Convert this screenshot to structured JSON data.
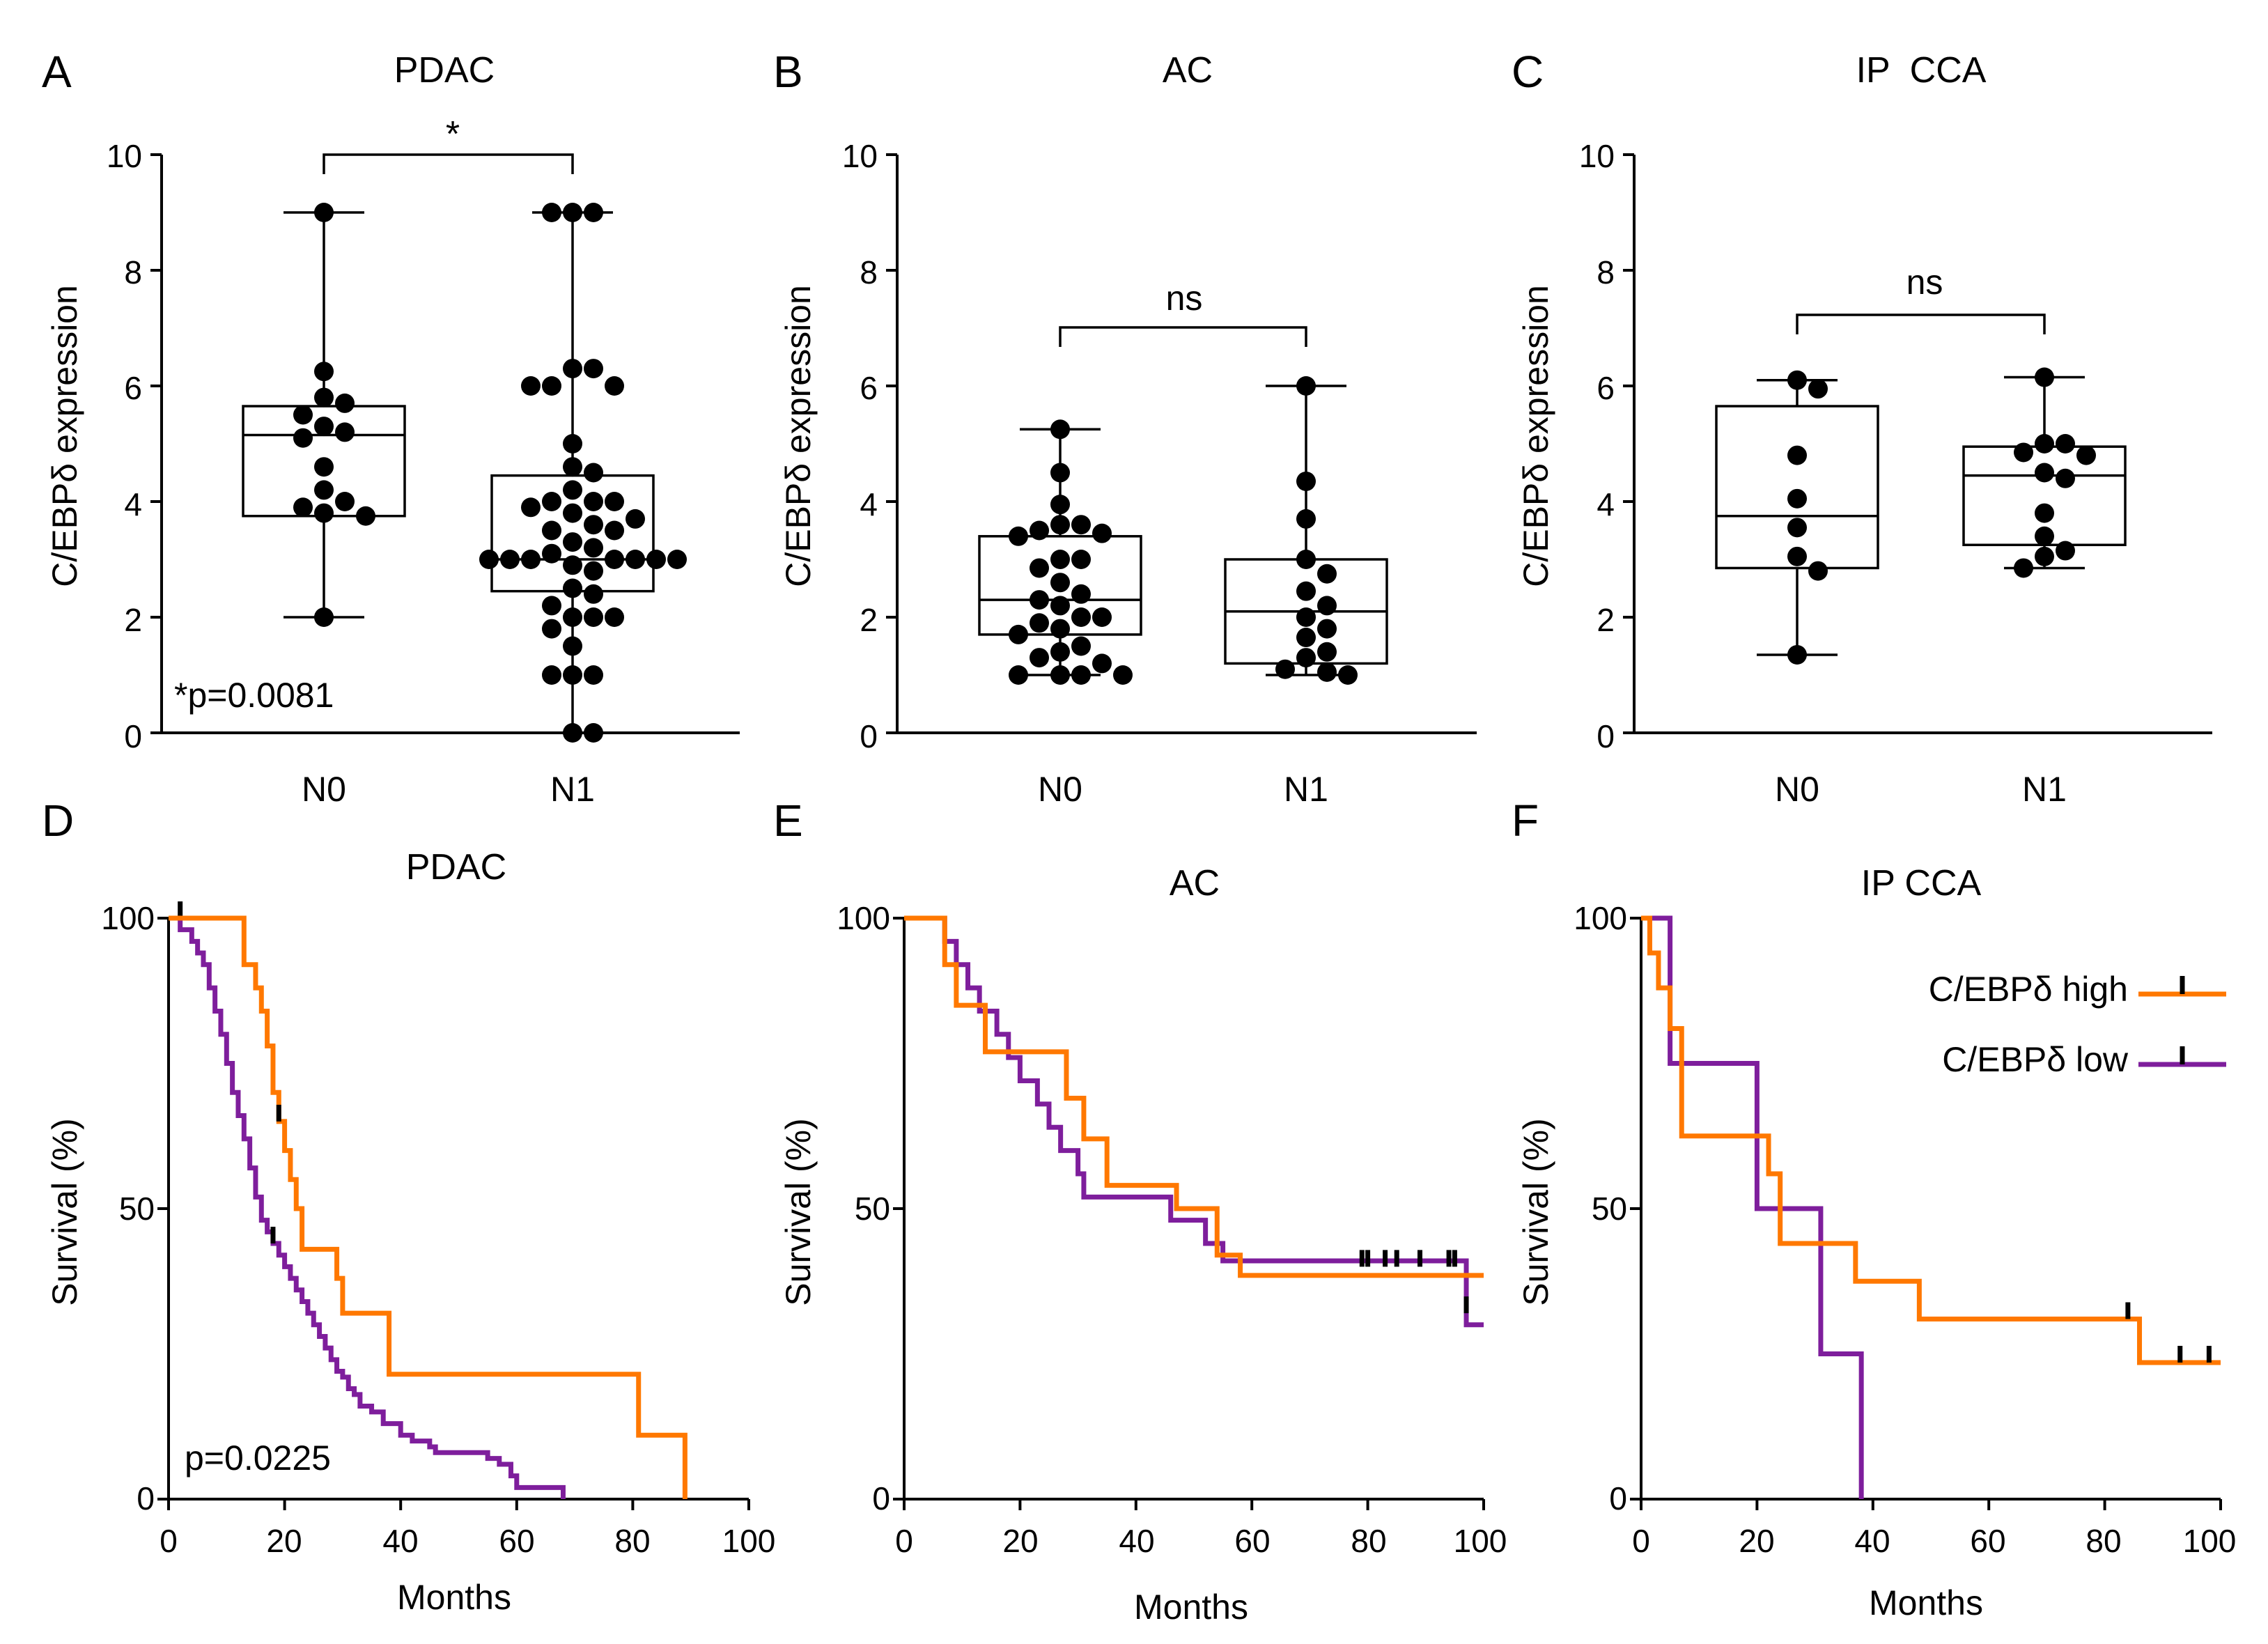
{
  "figure": {
    "legend": {
      "entries": [
        {
          "label": "C/EBPδ high",
          "color": "#ff7800"
        },
        {
          "label": "C/EBPδ low",
          "color": "#7e1e9c"
        }
      ]
    }
  },
  "chart_data": [
    {
      "panel": "A",
      "type": "box",
      "title": "PDAC",
      "ylabel": "C/EBPδ expression",
      "ylim": [
        0,
        10
      ],
      "yticks": [
        "0",
        "2",
        "4",
        "6",
        "8",
        "10"
      ],
      "categories": [
        "N0",
        "N1"
      ],
      "boxes": [
        {
          "name": "N0",
          "min": 2.0,
          "q1": 3.75,
          "median": 5.15,
          "q3": 5.65,
          "max": 9.0,
          "points": [
            9.0,
            6.25,
            5.8,
            5.7,
            5.5,
            5.3,
            5.2,
            5.1,
            4.6,
            4.2,
            4.0,
            3.9,
            3.8,
            3.75,
            2.0
          ]
        },
        {
          "name": "N1",
          "min": 0.0,
          "q1": 2.45,
          "median": 3.0,
          "q3": 4.45,
          "max": 9.0,
          "points": [
            9.0,
            9.0,
            9.0,
            6.3,
            6.3,
            6.0,
            6.0,
            6.0,
            5.0,
            4.6,
            4.5,
            4.2,
            4.0,
            4.0,
            4.0,
            3.9,
            3.8,
            3.7,
            3.6,
            3.5,
            3.5,
            3.3,
            3.2,
            3.1,
            3.0,
            3.0,
            3.0,
            3.0,
            3.0,
            3.0,
            3.0,
            2.9,
            2.8,
            2.5,
            2.4,
            2.2,
            2.0,
            2.0,
            2.0,
            1.8,
            1.5,
            1.0,
            1.0,
            1.0,
            0.0,
            0.0
          ]
        }
      ],
      "comparison": "*",
      "annotation": "*p=0.0081"
    },
    {
      "panel": "B",
      "type": "box",
      "title": "AC",
      "ylabel": "C/EBPδ expression",
      "ylim": [
        0,
        10
      ],
      "yticks": [
        "0",
        "2",
        "4",
        "6",
        "8",
        "10"
      ],
      "categories": [
        "N0",
        "N1"
      ],
      "boxes": [
        {
          "name": "N0",
          "min": 1.0,
          "q1": 1.7,
          "median": 2.3,
          "q3": 3.4,
          "max": 5.25,
          "points": [
            5.25,
            4.5,
            3.95,
            3.6,
            3.6,
            3.5,
            3.45,
            3.4,
            3.0,
            3.0,
            2.85,
            2.6,
            2.4,
            2.3,
            2.2,
            2.0,
            2.0,
            1.9,
            1.8,
            1.7,
            1.5,
            1.4,
            1.3,
            1.2,
            1.0,
            1.0,
            1.0,
            1.0
          ]
        },
        {
          "name": "N1",
          "min": 1.0,
          "q1": 1.2,
          "median": 2.1,
          "q3": 3.0,
          "max": 6.0,
          "points": [
            6.0,
            4.35,
            3.7,
            3.0,
            2.75,
            2.45,
            2.2,
            2.0,
            1.8,
            1.65,
            1.4,
            1.3,
            1.1,
            1.05,
            1.0
          ]
        }
      ],
      "comparison": "ns"
    },
    {
      "panel": "C",
      "type": "box",
      "title": "IP  CCA",
      "ylabel": "C/EBPδ expression",
      "ylim": [
        0,
        10
      ],
      "yticks": [
        "0",
        "2",
        "4",
        "6",
        "8",
        "10"
      ],
      "categories": [
        "N0",
        "N1"
      ],
      "boxes": [
        {
          "name": "N0",
          "min": 1.35,
          "q1": 2.85,
          "median": 3.75,
          "q3": 5.65,
          "max": 6.1,
          "points": [
            6.1,
            5.95,
            4.8,
            4.05,
            3.55,
            3.05,
            2.8,
            1.35
          ]
        },
        {
          "name": "N1",
          "min": 2.85,
          "q1": 3.25,
          "median": 4.45,
          "q3": 4.95,
          "max": 6.15,
          "points": [
            6.15,
            5.0,
            5.0,
            4.85,
            4.8,
            4.5,
            4.4,
            3.8,
            3.4,
            3.15,
            3.05,
            2.85
          ]
        }
      ],
      "comparison": "ns"
    },
    {
      "panel": "D",
      "type": "line",
      "subtype": "kaplan-meier",
      "title": "PDAC",
      "xlabel": "Months",
      "ylabel": "Survival (%)",
      "xlim": [
        0,
        100
      ],
      "ylim": [
        0,
        100
      ],
      "xticks": [
        "0",
        "20",
        "40",
        "60",
        "80",
        "100"
      ],
      "yticks": [
        "0",
        "50",
        "100"
      ],
      "annotation": "p=0.0225",
      "series": [
        {
          "name": "C/EBPδ high",
          "x": [
            0,
            12,
            13,
            15,
            16,
            17,
            18,
            19,
            20,
            21,
            22,
            23,
            29,
            30,
            38,
            80,
            81,
            89
          ],
          "y": [
            100,
            100,
            92,
            88,
            84,
            78,
            70,
            65,
            60,
            55,
            50,
            43,
            38,
            32,
            21.5,
            21.5,
            11,
            0
          ],
          "censored": [
            {
              "x": 19,
              "y": 65
            }
          ]
        },
        {
          "name": "C/EBPδ low",
          "x": [
            0,
            2,
            4,
            5,
            6,
            7,
            8,
            9,
            10,
            11,
            12,
            13,
            14,
            15,
            16,
            17,
            18,
            19,
            20,
            21,
            22,
            23,
            24,
            25,
            26,
            27,
            28,
            29,
            30,
            31,
            32,
            33,
            35,
            37,
            40,
            42,
            45,
            46,
            48,
            55,
            57,
            59,
            60,
            68
          ],
          "y": [
            100,
            98,
            96,
            94,
            92,
            88,
            84,
            80,
            75,
            70,
            66,
            62,
            57,
            52,
            48,
            46,
            44,
            42,
            40,
            38,
            36,
            34,
            32,
            30,
            28,
            26,
            24,
            22,
            21,
            19,
            18,
            16,
            15,
            13,
            11,
            10,
            9,
            8,
            8,
            7,
            6,
            4,
            2,
            0
          ],
          "censored": [
            {
              "x": 2,
              "y": 100
            },
            {
              "x": 18,
              "y": 44
            }
          ]
        }
      ]
    },
    {
      "panel": "E",
      "type": "line",
      "subtype": "kaplan-meier",
      "title": "AC",
      "xlabel": "Months",
      "ylabel": "Survival (%)",
      "xlim": [
        0,
        100
      ],
      "ylim": [
        0,
        100
      ],
      "xticks": [
        "0",
        "20",
        "40",
        "60",
        "80",
        "100"
      ],
      "yticks": [
        "0",
        "50",
        "100"
      ],
      "series": [
        {
          "name": "C/EBPδ high",
          "x": [
            0,
            7,
            9,
            14,
            28,
            31,
            35,
            44,
            47,
            54,
            58,
            100
          ],
          "y": [
            100,
            92,
            85,
            77,
            69,
            62,
            54,
            54,
            50,
            42,
            38.5,
            38.5
          ],
          "censored": []
        },
        {
          "name": "C/EBPδ low",
          "x": [
            0,
            7,
            9,
            11,
            13,
            16,
            18,
            20,
            23,
            25,
            27,
            30,
            31,
            44,
            46,
            52,
            55,
            97,
            100
          ],
          "y": [
            100,
            96,
            92,
            88,
            84,
            80,
            76,
            72,
            68,
            64,
            60,
            56,
            52,
            52,
            48,
            44,
            41,
            30,
            30
          ],
          "censored": [
            {
              "x": 79,
              "y": 40
            },
            {
              "x": 80,
              "y": 40
            },
            {
              "x": 83,
              "y": 40
            },
            {
              "x": 85,
              "y": 40
            },
            {
              "x": 89,
              "y": 40
            },
            {
              "x": 94,
              "y": 40
            },
            {
              "x": 95,
              "y": 40
            },
            {
              "x": 97,
              "y": 32
            }
          ]
        }
      ]
    },
    {
      "panel": "F",
      "type": "line",
      "subtype": "kaplan-meier",
      "title": "IP CCA",
      "xlabel": "Months",
      "ylabel": "Survival (%)",
      "xlim": [
        0,
        100
      ],
      "ylim": [
        0,
        100
      ],
      "xticks": [
        "0",
        "20",
        "40",
        "60",
        "80",
        "100"
      ],
      "yticks": [
        "0",
        "50",
        "100"
      ],
      "series": [
        {
          "name": "C/EBPδ high",
          "x": [
            0,
            1.5,
            3,
            5,
            7,
            21,
            22,
            24,
            34,
            37,
            48,
            86,
            100
          ],
          "y": [
            100,
            94,
            88,
            81,
            62.5,
            62.5,
            56,
            44,
            44,
            37.5,
            31,
            23.5,
            23.5
          ],
          "censored": [
            {
              "x": 84,
              "y": 31
            },
            {
              "x": 93,
              "y": 23.5
            },
            {
              "x": 98,
              "y": 23.5
            }
          ]
        },
        {
          "name": "C/EBPδ low",
          "x": [
            0,
            5,
            20,
            25,
            31,
            38
          ],
          "y": [
            100,
            75,
            50,
            50,
            25,
            0
          ],
          "censored": []
        }
      ]
    }
  ]
}
